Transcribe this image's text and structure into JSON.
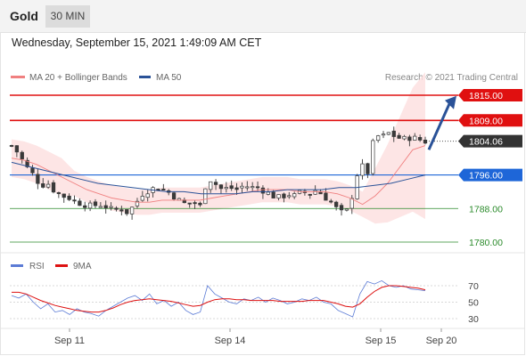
{
  "header": {
    "title": "Gold",
    "timeframe": "30 MIN",
    "datetime": "Wednesday, September 15, 2021 1:49:09 AM CET"
  },
  "legend": {
    "ma20": "MA 20 + Bollinger Bands",
    "ma50": "MA 50",
    "ma20_color": "#f08080",
    "ma50_color": "#2a5298",
    "copyright": "Research © 2021 Trading Central"
  },
  "rsi_legend": {
    "rsi": "RSI",
    "ma": "9MA",
    "rsi_color": "#5b7bd5",
    "ma_color": "#dd1111"
  },
  "chart_data": [
    {
      "type": "candlestick",
      "title": "Gold 30 MIN",
      "xlabel": "",
      "ylabel": "",
      "x_ticks": [
        "Sep 11",
        "Sep 14",
        "Sep 15",
        "Sep 20"
      ],
      "price_levels": [
        {
          "value": 1815.0,
          "label": "1815.00",
          "kind": "resistance",
          "color": "#e01010"
        },
        {
          "value": 1809.0,
          "label": "1809.00",
          "kind": "resistance",
          "color": "#e01010"
        },
        {
          "value": 1804.06,
          "label": "1804.06",
          "kind": "last",
          "color": "#333333"
        },
        {
          "value": 1796.0,
          "label": "1796.00",
          "kind": "pivot",
          "color": "#1e66d8"
        },
        {
          "value": 1788.0,
          "label": "1788.00",
          "kind": "support",
          "color": "#2a8a2a"
        },
        {
          "value": 1780.0,
          "label": "1780.00",
          "kind": "support",
          "color": "#2a8a2a"
        }
      ],
      "close_path": [
        1803.0,
        1801.0,
        1798.0,
        1796.0,
        1793.5,
        1794.0,
        1792.0,
        1791.0,
        1790.5,
        1789.5,
        1789.0,
        1788.5,
        1789.0,
        1788.5,
        1787.5,
        1788.0,
        1787.0,
        1789.0,
        1791.5,
        1792.5,
        1793.0,
        1792.5,
        1791.5,
        1790.0,
        1789.0,
        1789.5,
        1788.5,
        1795.5,
        1794.0,
        1792.5,
        1793.0,
        1792.5,
        1793.5,
        1793.0,
        1793.0,
        1792.0,
        1791.0,
        1790.5,
        1791.5,
        1791.0,
        1792.0,
        1791.5,
        1792.5,
        1791.0,
        1789.5,
        1787.5,
        1786.5,
        1791.5,
        1799.0,
        1796.0,
        1805.5,
        1805.0,
        1806.0,
        1805.0,
        1804.5,
        1805.0,
        1804.5,
        1804.0
      ],
      "ma20_path": [
        1800.0,
        1799.5,
        1798.5,
        1797.0,
        1795.5,
        1794.0,
        1792.5,
        1791.5,
        1790.5,
        1790.0,
        1789.5,
        1789.5,
        1790.0,
        1790.0,
        1790.0,
        1790.0,
        1790.5,
        1791.0,
        1791.5,
        1792.0,
        1792.5,
        1792.5,
        1792.5,
        1792.0,
        1792.0,
        1792.0,
        1791.5,
        1790.5,
        1789.0,
        1791.0,
        1794.0,
        1798.0,
        1802.0,
        1803.0
      ],
      "ma50_path": [
        1799.0,
        1798.0,
        1797.0,
        1796.0,
        1795.0,
        1794.0,
        1793.5,
        1793.0,
        1792.5,
        1792.0,
        1792.0,
        1791.5,
        1791.5,
        1791.5,
        1792.0,
        1792.0,
        1792.5,
        1792.5,
        1792.5,
        1793.0,
        1793.0,
        1793.5,
        1794.0,
        1795.0,
        1796.0
      ],
      "forecast_arrow": {
        "from": 1802.0,
        "to": 1814.0
      }
    },
    {
      "type": "line",
      "title": "RSI",
      "y_ticks": [
        70,
        50,
        30
      ],
      "series": [
        {
          "name": "RSI",
          "values": [
            58,
            55,
            60,
            50,
            42,
            48,
            38,
            40,
            35,
            42,
            38,
            36,
            33,
            40,
            45,
            50,
            55,
            58,
            52,
            60,
            48,
            52,
            45,
            50,
            40,
            35,
            38,
            70,
            60,
            55,
            50,
            48,
            54,
            52,
            56,
            50,
            55,
            52,
            48,
            50,
            54,
            52,
            56,
            50,
            48,
            40,
            36,
            32,
            60,
            75,
            72,
            76,
            70,
            68,
            70,
            66,
            65,
            64
          ]
        },
        {
          "name": "9MA",
          "values": [
            62,
            62,
            60,
            56,
            52,
            49,
            46,
            44,
            42,
            40,
            39,
            38,
            38,
            40,
            43,
            47,
            50,
            52,
            53,
            54,
            53,
            52,
            51,
            49,
            47,
            45,
            46,
            50,
            53,
            54,
            54,
            53,
            53,
            52,
            52,
            52,
            52,
            51,
            51,
            51,
            51,
            52,
            52,
            52,
            50,
            48,
            45,
            44,
            48,
            56,
            63,
            68,
            70,
            70,
            69,
            68,
            67,
            65
          ]
        }
      ]
    }
  ]
}
